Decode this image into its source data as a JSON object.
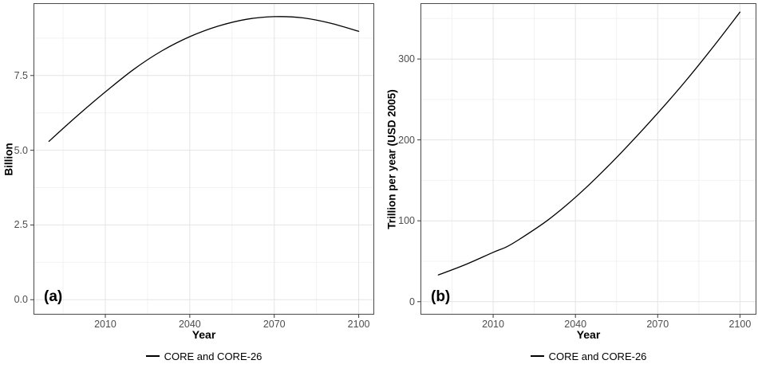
{
  "colors": {
    "background": "#ffffff",
    "panel_border": "#4a4a4a",
    "grid_major": "#e4e4e4",
    "grid_minor": "#f2f2f2",
    "tick_mark": "#353535",
    "axis_text": "#4d4d4d",
    "line": "#000000"
  },
  "chart_data": [
    {
      "type": "line",
      "panel_label": "(a)",
      "xlabel": "Year",
      "ylabel": "Billion",
      "xlim": [
        1984.5,
        2105.5
      ],
      "ylim": [
        -0.5,
        9.92
      ],
      "x_tick_values": [
        2010,
        2040,
        2070,
        2100
      ],
      "x_tick_labels": [
        "2010",
        "2040",
        "2070",
        "2100"
      ],
      "x_minor": [
        1995,
        2025,
        2055,
        2085
      ],
      "y_tick_values": [
        0,
        2.5,
        5,
        7.5
      ],
      "y_tick_labels": [
        "0.0",
        "2.5",
        "5.0",
        "7.5"
      ],
      "y_minor": [
        1.25,
        3.75,
        6.25,
        8.75
      ],
      "grid": true,
      "legend": {
        "position": "bottom",
        "label": "CORE and CORE-26"
      },
      "series": [
        {
          "name": "CORE and CORE-26",
          "color": "#000000",
          "x": [
            1990,
            2000,
            2010,
            2020,
            2030,
            2040,
            2050,
            2060,
            2070,
            2080,
            2090,
            2100
          ],
          "y": [
            5.3,
            6.15,
            6.95,
            7.7,
            8.32,
            8.8,
            9.15,
            9.38,
            9.47,
            9.43,
            9.25,
            8.98
          ]
        }
      ]
    },
    {
      "type": "line",
      "panel_label": "(b)",
      "xlabel": "Year",
      "ylabel": "Trillion per year (USD 2005)",
      "xlim": [
        1983.5,
        2106
      ],
      "ylim": [
        -16,
        369
      ],
      "x_tick_values": [
        2010,
        2040,
        2070,
        2100
      ],
      "x_tick_labels": [
        "2010",
        "2040",
        "2070",
        "2100"
      ],
      "x_minor": [
        1995,
        2025,
        2055,
        2085
      ],
      "y_tick_values": [
        0,
        100,
        200,
        300
      ],
      "y_tick_labels": [
        "0",
        "100",
        "200",
        "300"
      ],
      "y_minor": [
        50,
        150,
        250,
        350
      ],
      "grid": true,
      "legend": {
        "position": "bottom",
        "label": "CORE and CORE-26"
      },
      "series": [
        {
          "name": "CORE and CORE-26",
          "color": "#000000",
          "x": [
            1990,
            2000,
            2010,
            2015,
            2020,
            2030,
            2040,
            2050,
            2060,
            2070,
            2080,
            2090,
            2100
          ],
          "y": [
            33,
            46,
            61,
            68,
            78,
            101,
            129,
            161,
            196,
            233,
            272,
            314,
            358
          ]
        }
      ]
    }
  ]
}
